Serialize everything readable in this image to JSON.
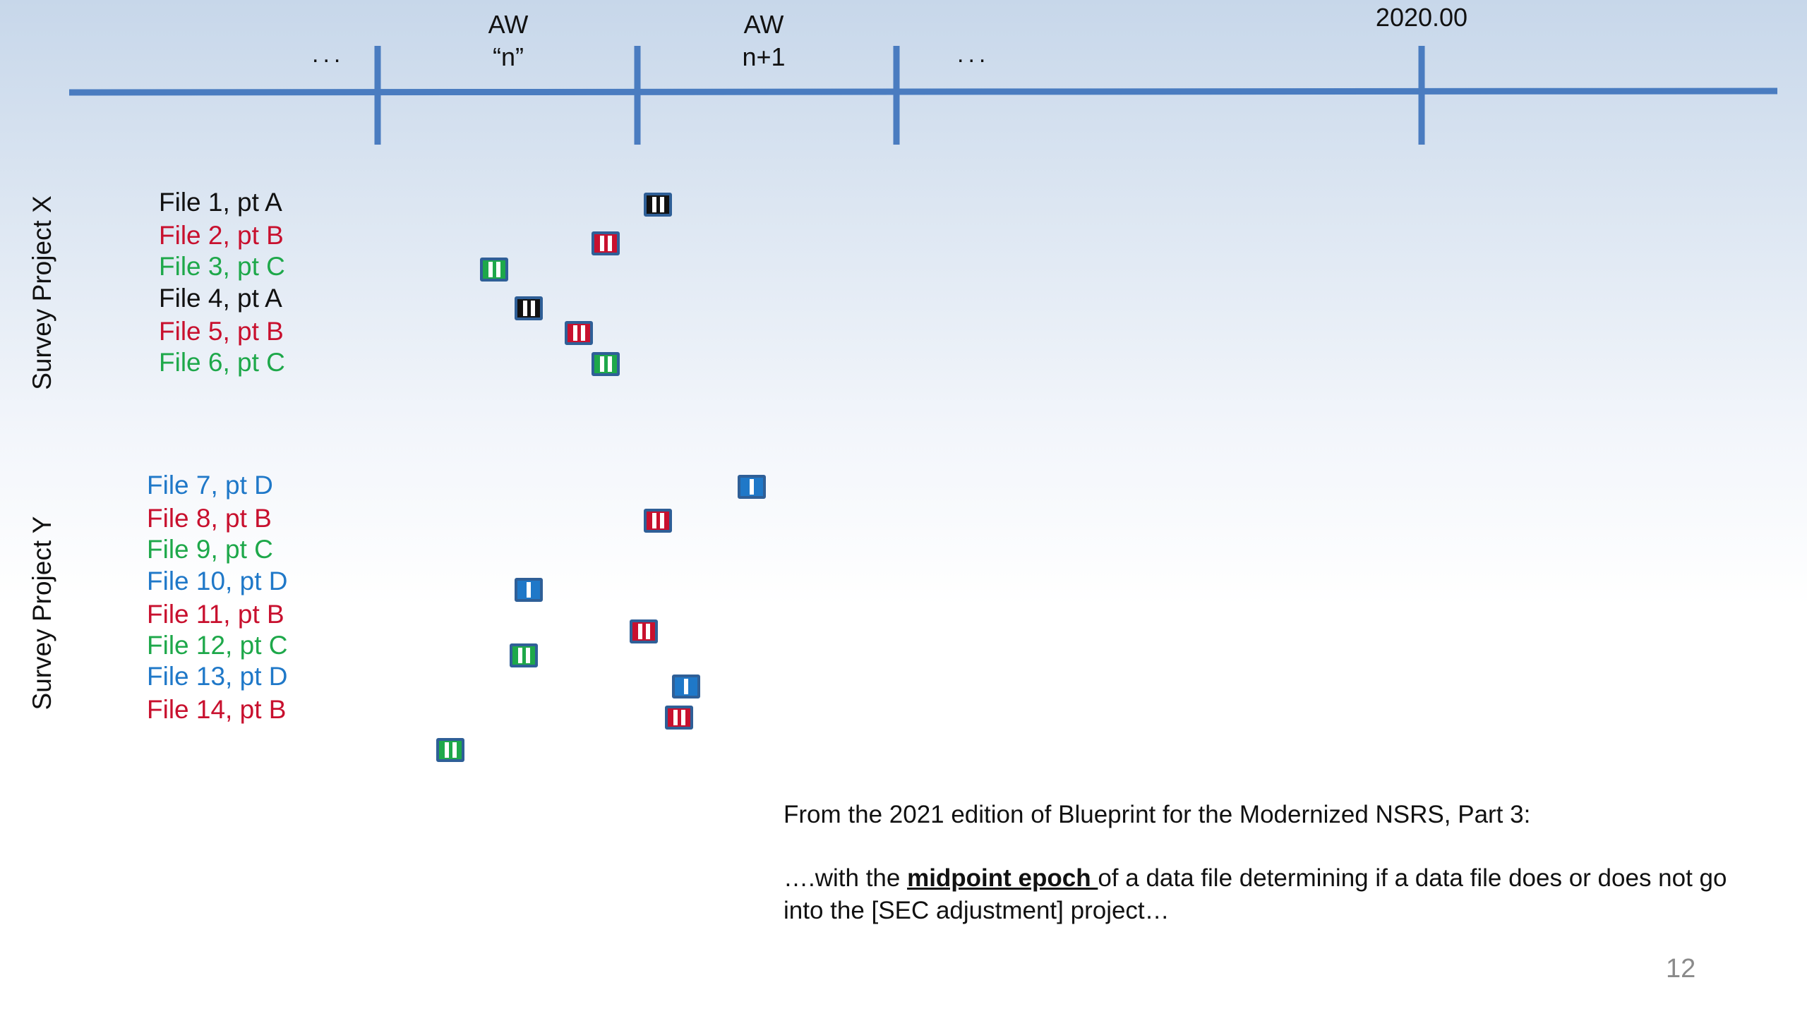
{
  "timeline": {
    "left_ellipsis": "...",
    "aw_n_line1": "AW",
    "aw_n_line2": "“n”",
    "aw_n1_line1": "AW",
    "aw_n1_line2": "n+1",
    "right_ellipsis": "...",
    "epoch_label": "2020.00"
  },
  "colors": {
    "timeline": "#4a7cc0",
    "black": "#111111",
    "red": "#c8102e",
    "green": "#1ea84a",
    "blue": "#1f78c8"
  },
  "projects": [
    {
      "label": "Survey Project X",
      "files": [
        {
          "label": "File 1, pt A",
          "color": "black"
        },
        {
          "label": "File 2, pt B",
          "color": "red"
        },
        {
          "label": "File 3, pt C",
          "color": "green"
        },
        {
          "label": "File 4, pt A",
          "color": "black"
        },
        {
          "label": "File 5, pt B",
          "color": "red"
        },
        {
          "label": "File 6, pt C",
          "color": "green"
        }
      ]
    },
    {
      "label": "Survey Project Y",
      "files": [
        {
          "label": "File 7, pt D",
          "color": "blue"
        },
        {
          "label": "File 8, pt B",
          "color": "red"
        },
        {
          "label": "File 9, pt C",
          "color": "green"
        },
        {
          "label": "File 10, pt D",
          "color": "blue"
        },
        {
          "label": "File 11, pt B",
          "color": "red"
        },
        {
          "label": "File 12, pt C",
          "color": "green"
        },
        {
          "label": "File 13, pt D",
          "color": "blue"
        },
        {
          "label": "File 14, pt B",
          "color": "red"
        }
      ]
    }
  ],
  "quote": {
    "intro": "From the 2021 edition of Blueprint for the Modernized NSRS, Part 3:",
    "lead": "….with the ",
    "emphasis": "midpoint epoch ",
    "rest": "of a data file determining if a data file does or does not go into the [SEC adjustment] project…"
  },
  "page_number": "12"
}
